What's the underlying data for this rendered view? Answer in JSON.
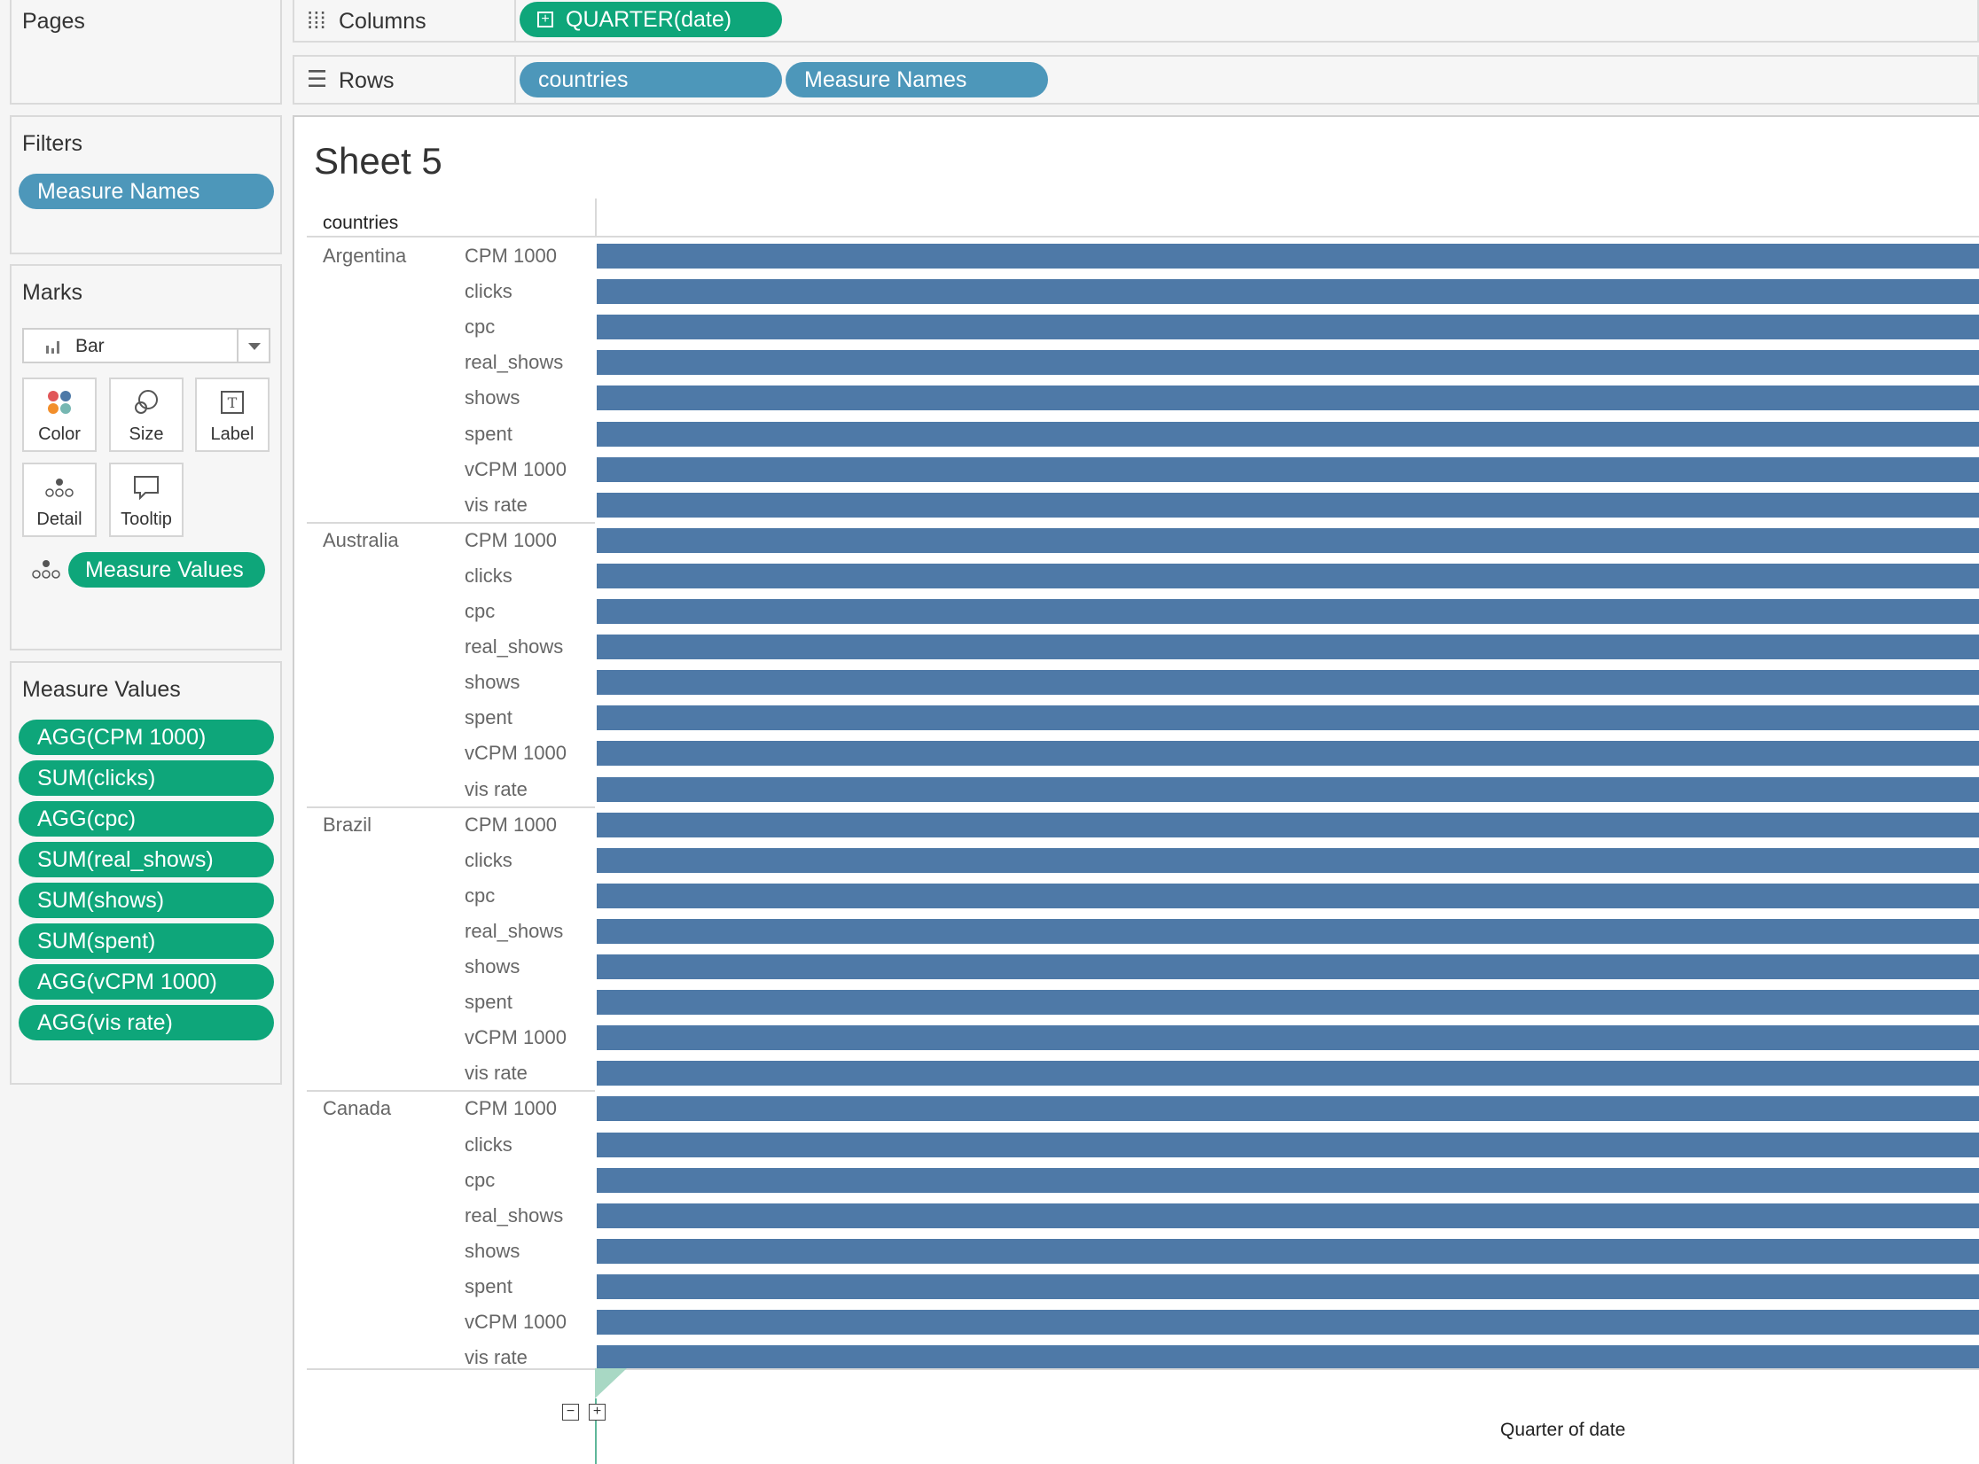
{
  "shelves": {
    "pages_label": "Pages",
    "columns_label": "Columns",
    "rows_label": "Rows",
    "columns_pills": [
      "QUARTER(date)"
    ],
    "rows_pills": [
      "countries",
      "Measure Names"
    ]
  },
  "filters": {
    "title": "Filters",
    "pills": [
      "Measure Names"
    ]
  },
  "marks": {
    "title": "Marks",
    "type": "Bar",
    "cards": {
      "color": "Color",
      "size": "Size",
      "label": "Label",
      "detail": "Detail",
      "tooltip": "Tooltip"
    },
    "field_pill": "Measure Values"
  },
  "measure_values": {
    "title": "Measure Values",
    "pills": [
      "AGG(CPM 1000)",
      "SUM(clicks)",
      "AGG(cpc)",
      "SUM(real_shows)",
      "SUM(shows)",
      "SUM(spent)",
      "AGG(vCPM 1000)",
      "AGG(vis rate)"
    ]
  },
  "sheet": {
    "title": "Sheet 5",
    "row_header": "countries",
    "axis_title": "Quarter of date",
    "bar_color": "#4e79a7"
  },
  "chart_data": {
    "type": "bar",
    "groups": [
      "Argentina",
      "Australia",
      "Brazil",
      "Canada"
    ],
    "measures": [
      "CPM 1000",
      "clicks",
      "cpc",
      "real_shows",
      "shows",
      "spent",
      "vCPM 1000",
      "vis rate"
    ],
    "xlabel": "Quarter of date",
    "note_visible": "all bars extend past the visible right edge"
  },
  "colors": {
    "dimension_pill": "#4d97ba",
    "measure_pill": "#0ea67a"
  }
}
